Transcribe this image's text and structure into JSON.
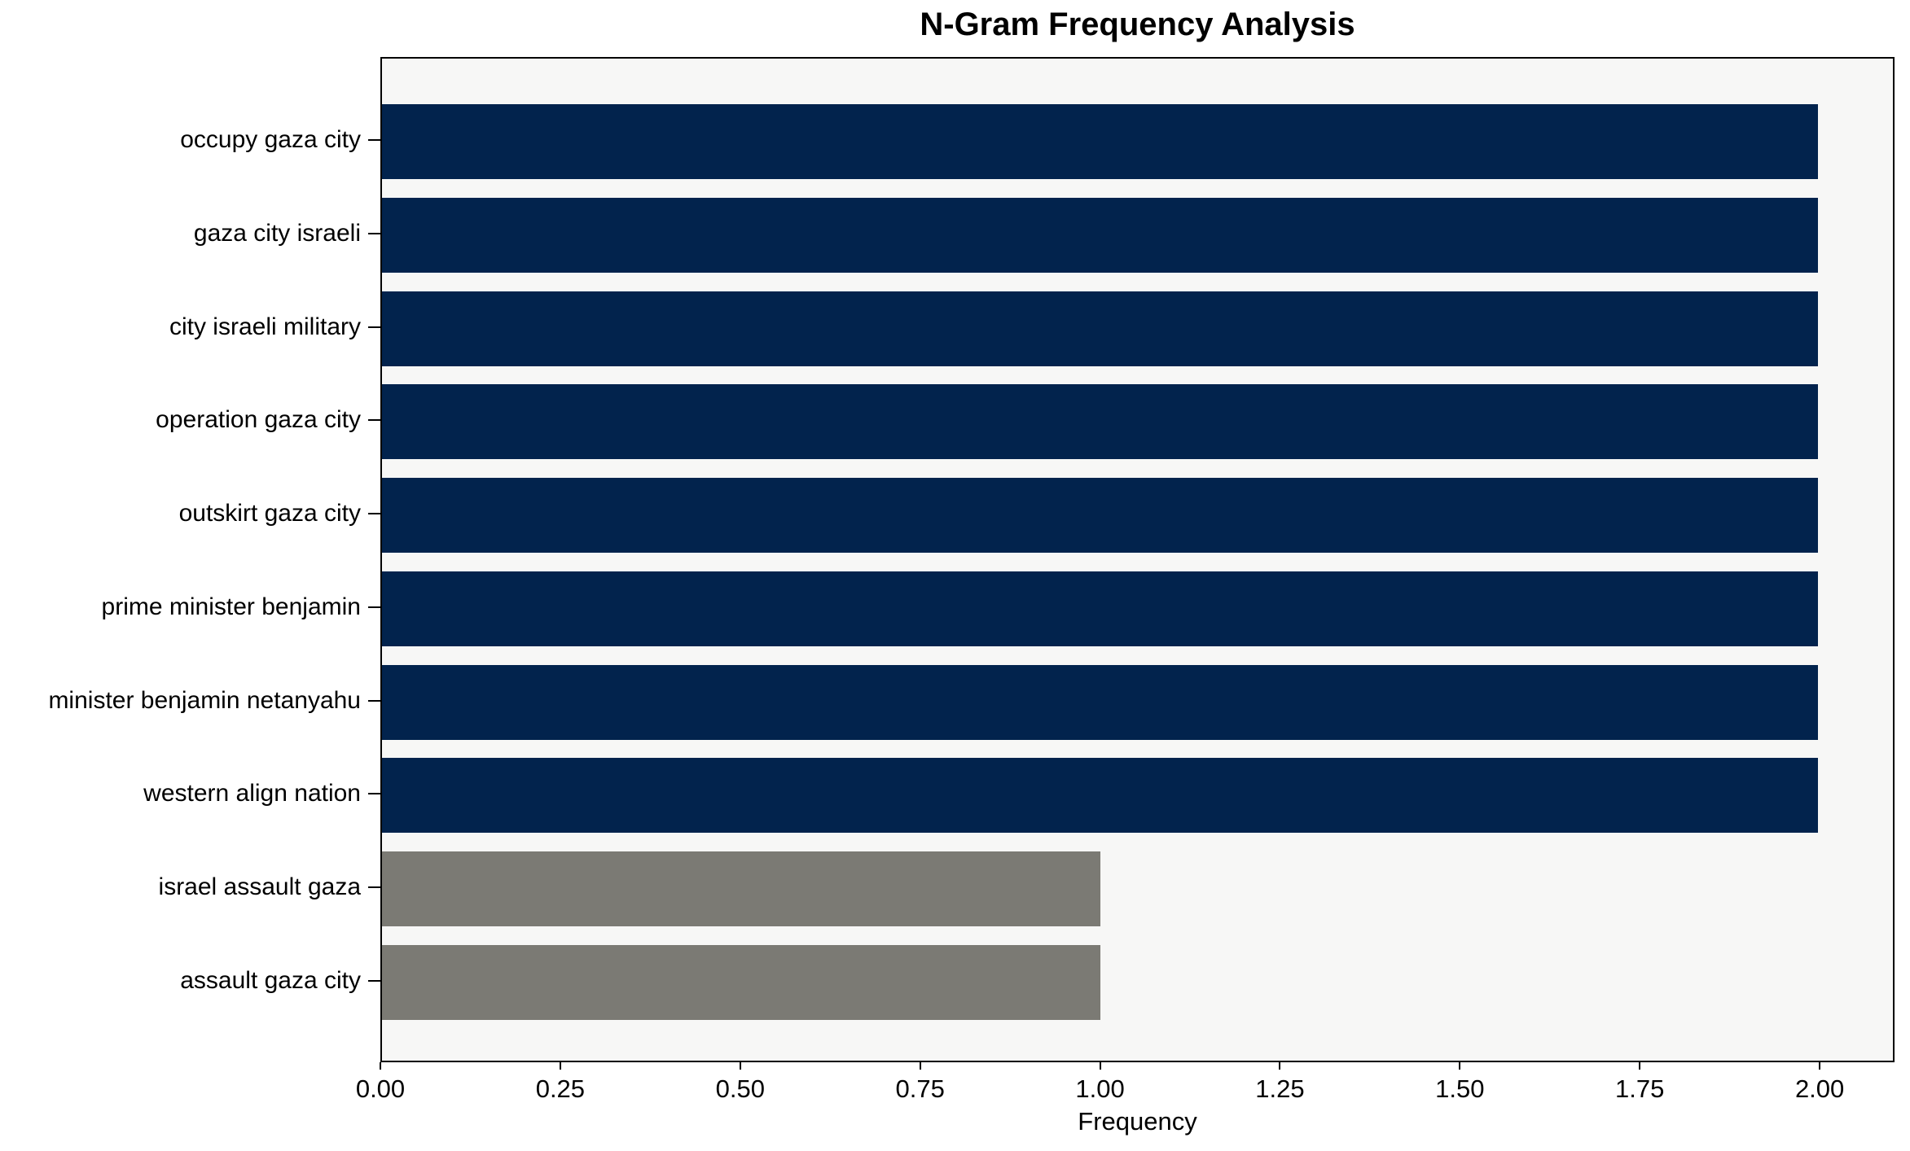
{
  "chart_data": {
    "type": "bar",
    "orientation": "horizontal",
    "title": "N-Gram Frequency Analysis",
    "xlabel": "Frequency",
    "ylabel": "",
    "xlim": [
      0,
      2.104
    ],
    "grid": false,
    "legend": null,
    "plot_background": "#f7f7f6",
    "frame_color": "#000000",
    "x_ticks": [
      {
        "label": "0.00",
        "value": 0.0
      },
      {
        "label": "0.25",
        "value": 0.25
      },
      {
        "label": "0.50",
        "value": 0.5
      },
      {
        "label": "0.75",
        "value": 0.75
      },
      {
        "label": "1.00",
        "value": 1.0
      },
      {
        "label": "1.25",
        "value": 1.25
      },
      {
        "label": "1.50",
        "value": 1.5
      },
      {
        "label": "1.75",
        "value": 1.75
      },
      {
        "label": "2.00",
        "value": 2.0
      }
    ],
    "bars": [
      {
        "label": "occupy gaza city",
        "value": 2,
        "color": "#02234d"
      },
      {
        "label": "gaza city israeli",
        "value": 2,
        "color": "#02234d"
      },
      {
        "label": "city israeli military",
        "value": 2,
        "color": "#02234d"
      },
      {
        "label": "operation gaza city",
        "value": 2,
        "color": "#02234d"
      },
      {
        "label": "outskirt gaza city",
        "value": 2,
        "color": "#02234d"
      },
      {
        "label": "prime minister benjamin",
        "value": 2,
        "color": "#02234d"
      },
      {
        "label": "minister benjamin netanyahu",
        "value": 2,
        "color": "#02234d"
      },
      {
        "label": "western align nation",
        "value": 2,
        "color": "#02234d"
      },
      {
        "label": "israel assault gaza",
        "value": 1,
        "color": "#7b7a74"
      },
      {
        "label": "assault gaza city",
        "value": 1,
        "color": "#7b7a74"
      }
    ]
  }
}
